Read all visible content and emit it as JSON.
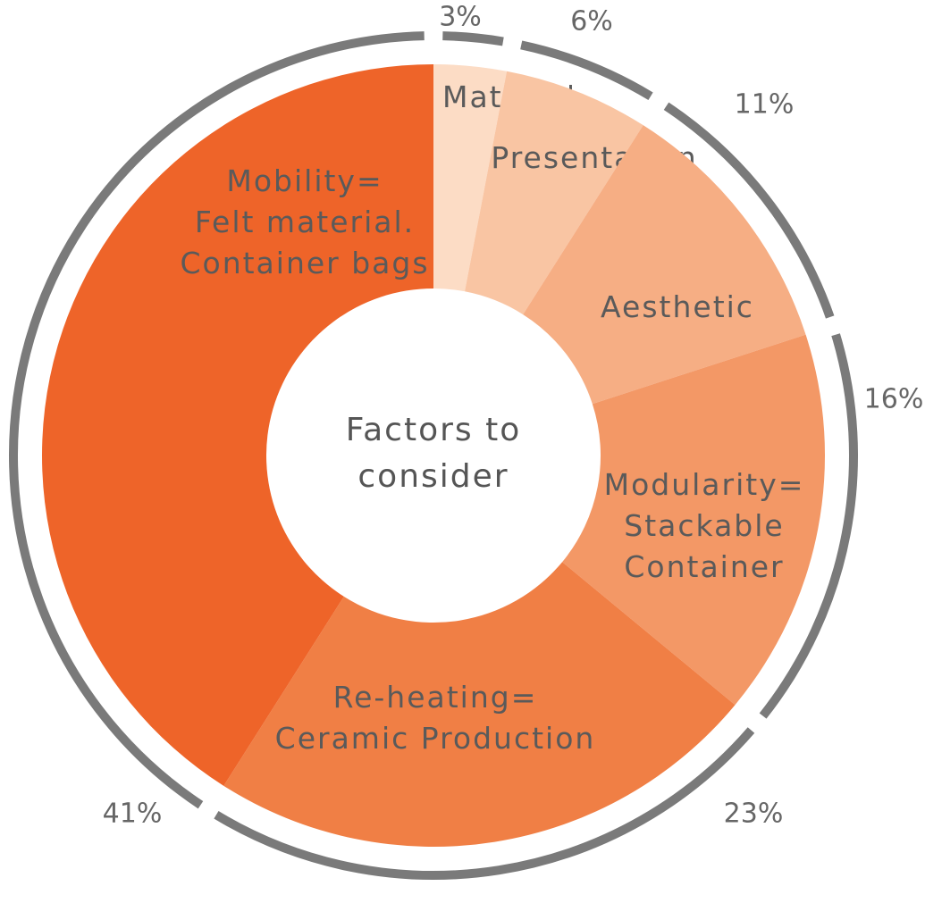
{
  "chart_data": {
    "type": "donut",
    "title": [
      "Factors to",
      "consider"
    ],
    "categories": [
      [
        "Material"
      ],
      [
        "Presentation"
      ],
      [
        "Aesthetic"
      ],
      [
        "Modularity=",
        "Stackable",
        "Container"
      ],
      [
        "Re-heating=",
        "Ceramic Production"
      ],
      [
        "Mobility=",
        "Felt material.",
        "Container bags"
      ]
    ],
    "values": [
      3,
      6,
      11,
      16,
      23,
      41
    ],
    "value_labels": [
      "3%",
      "6%",
      "11%",
      "16%",
      "23%",
      "41%"
    ],
    "colors": [
      "#fcdcc5",
      "#f9c5a3",
      "#f6ae84",
      "#f39866",
      "#f07f45",
      "#ee6429"
    ],
    "ring_color": "#7a7a7a"
  }
}
